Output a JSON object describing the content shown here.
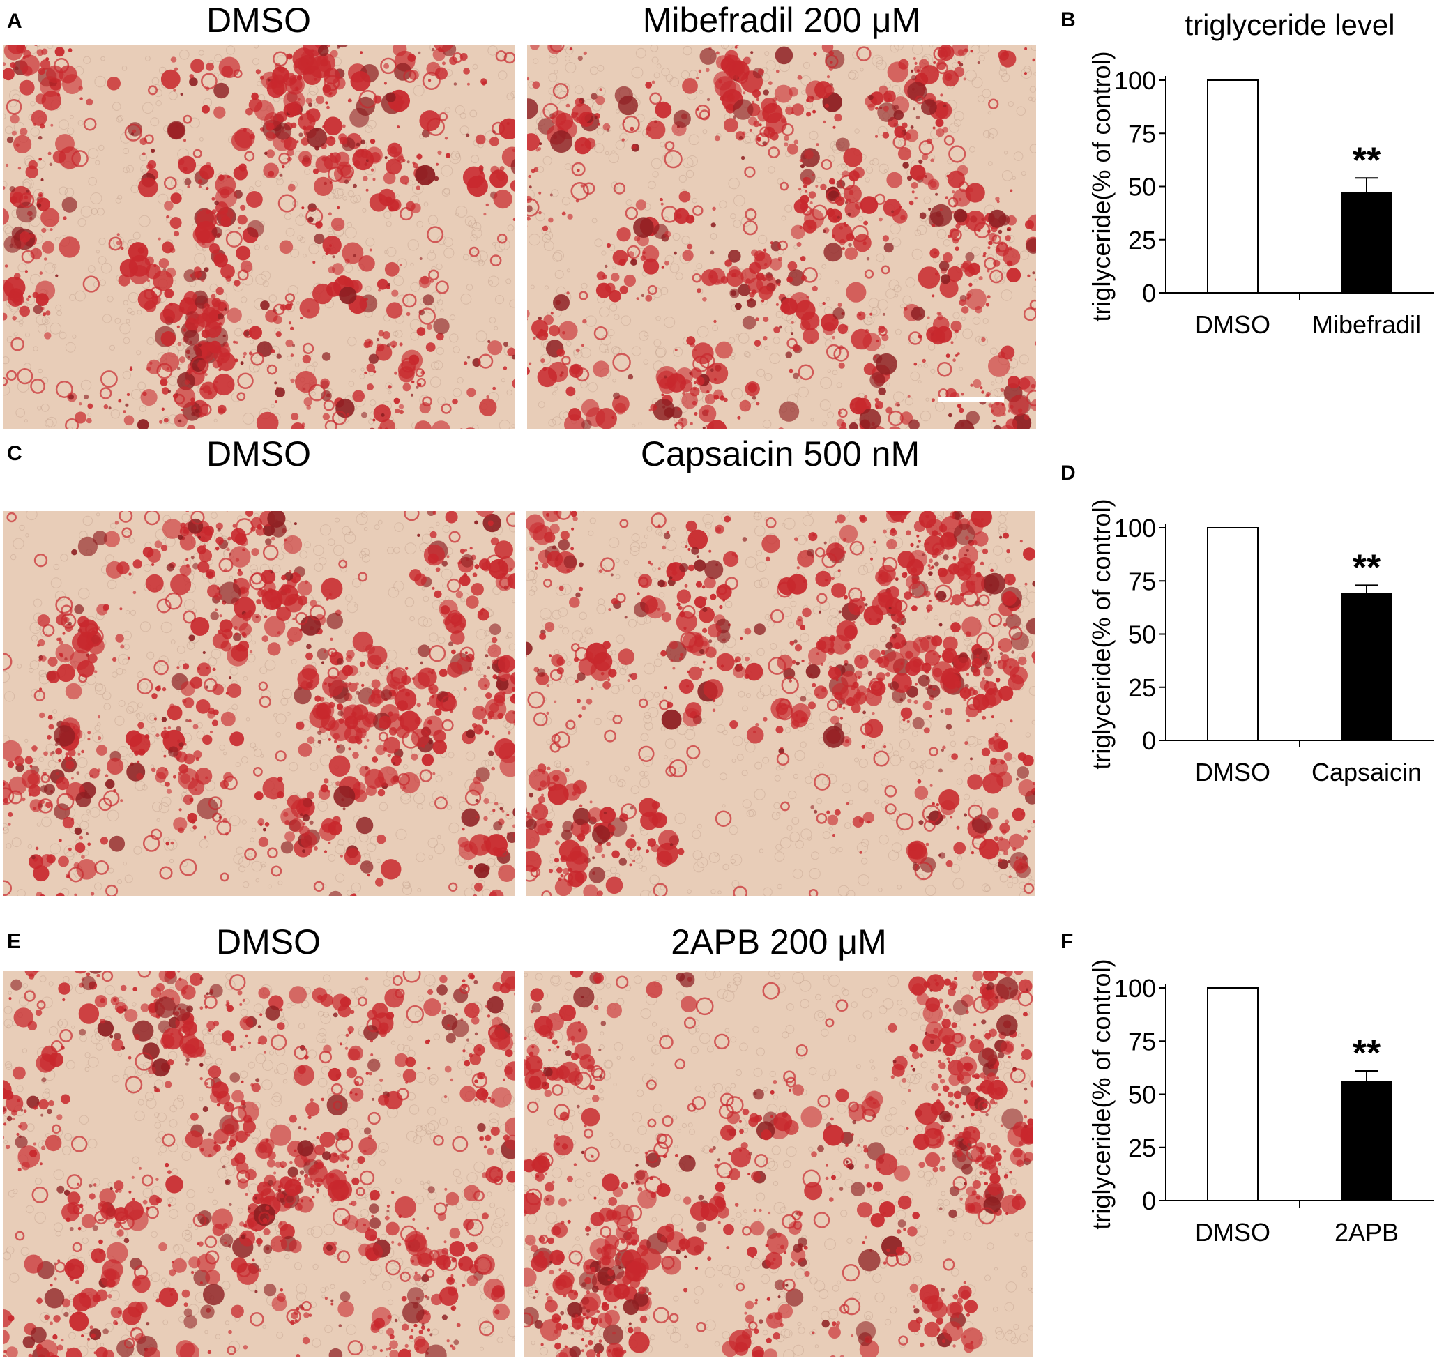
{
  "figure": {
    "panels": [
      {
        "row": 0,
        "letters": {
          "images": "A",
          "chart": "B"
        },
        "left_title": "DMSO",
        "right_title": "Mibefradil 200 μM",
        "chart_title": "triglyceride level",
        "scale_bar": true
      },
      {
        "row": 1,
        "letters": {
          "images": "C",
          "chart": "D"
        },
        "left_title": "DMSO",
        "right_title": "Capsaicin 500 nM",
        "chart_title": "",
        "scale_bar": false
      },
      {
        "row": 2,
        "letters": {
          "images": "E",
          "chart": "F"
        },
        "left_title": "DMSO",
        "right_title": "2APB 200 μM",
        "chart_title": "",
        "scale_bar": false
      }
    ]
  },
  "chart_data": [
    {
      "type": "bar",
      "title": "triglyceride level",
      "ylabel": "triglyceride(% of control)",
      "xlabel": "",
      "categories": [
        "DMSO",
        "Mibefradil"
      ],
      "values": [
        100,
        47
      ],
      "errors": [
        0,
        7
      ],
      "bar_colors": [
        "#ffffff",
        "#000000"
      ],
      "significance": [
        "",
        "**"
      ],
      "ylim": [
        0,
        100
      ],
      "yticks": [
        0,
        25,
        50,
        75,
        100
      ],
      "grid": false
    },
    {
      "type": "bar",
      "title": "",
      "ylabel": "triglyceride(% of control)",
      "xlabel": "",
      "categories": [
        "DMSO",
        "Capsaicin"
      ],
      "values": [
        100,
        69
      ],
      "errors": [
        0,
        4
      ],
      "bar_colors": [
        "#ffffff",
        "#000000"
      ],
      "significance": [
        "",
        "**"
      ],
      "ylim": [
        0,
        100
      ],
      "yticks": [
        0,
        25,
        50,
        75,
        100
      ],
      "grid": false
    },
    {
      "type": "bar",
      "title": "",
      "ylabel": "triglyceride(% of control)",
      "xlabel": "",
      "categories": [
        "DMSO",
        "2APB"
      ],
      "values": [
        100,
        56
      ],
      "errors": [
        0,
        5
      ],
      "bar_colors": [
        "#ffffff",
        "#000000"
      ],
      "significance": [
        "",
        "**"
      ],
      "ylim": [
        0,
        100
      ],
      "yticks": [
        0,
        25,
        50,
        75,
        100
      ],
      "grid": false
    }
  ],
  "colors": {
    "stain_red": "#c8282d",
    "stain_dark": "#8e1f22",
    "background_tissue": "#e8cdb8"
  }
}
